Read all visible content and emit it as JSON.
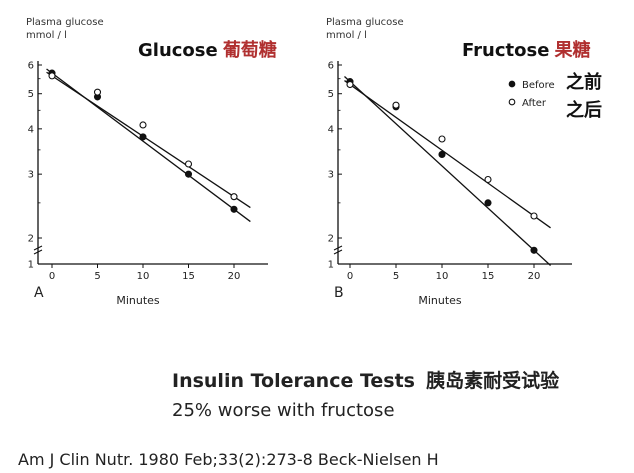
{
  "chart_data": [
    {
      "type": "line",
      "panel_label": "A",
      "ylabel_line1": "Plasma glucose",
      "ylabel_line2": "mmol / l",
      "title_en": "Glucose",
      "title_cn": "葡萄糖",
      "xlabel": "Minutes",
      "x": [
        0,
        5,
        10,
        15,
        20
      ],
      "xticks": [
        "0",
        "5",
        "10",
        "15",
        "20"
      ],
      "yticks": [
        "1",
        "2",
        "3",
        "4",
        "5",
        "6"
      ],
      "ylim": [
        1,
        6
      ],
      "yscale": "log",
      "series": [
        {
          "name": "Before",
          "marker": "filled",
          "values": [
            5.7,
            4.9,
            3.8,
            3.0,
            2.4
          ]
        },
        {
          "name": "After",
          "marker": "open",
          "values": [
            5.6,
            5.05,
            4.1,
            3.2,
            2.6
          ]
        }
      ]
    },
    {
      "type": "line",
      "panel_label": "B",
      "ylabel_line1": "Plasma glucose",
      "ylabel_line2": "mmol / l",
      "title_en": "Fructose",
      "title_cn": "果糖",
      "xlabel": "Minutes",
      "x": [
        0,
        5,
        10,
        15,
        20
      ],
      "xticks": [
        "0",
        "5",
        "10",
        "15",
        "20"
      ],
      "yticks": [
        "1",
        "2",
        "3",
        "4",
        "5",
        "6"
      ],
      "ylim": [
        1,
        6
      ],
      "yscale": "log",
      "legend": [
        {
          "name": "Before",
          "name_cn": "之前",
          "marker": "filled"
        },
        {
          "name": "After",
          "name_cn": "之后",
          "marker": "open"
        }
      ],
      "series": [
        {
          "name": "Before",
          "marker": "filled",
          "values": [
            5.4,
            4.6,
            3.4,
            2.5,
            1.85
          ]
        },
        {
          "name": "After",
          "marker": "open",
          "values": [
            5.3,
            4.65,
            3.75,
            2.9,
            2.3
          ]
        }
      ]
    }
  ],
  "caption": {
    "title_en": "Insulin Tolerance Tests",
    "title_cn": "胰岛素耐受试验",
    "subtitle": "25% worse with fructose",
    "citation": "Am J Clin Nutr. 1980 Feb;33(2):273-8 Beck-Nielsen H"
  }
}
